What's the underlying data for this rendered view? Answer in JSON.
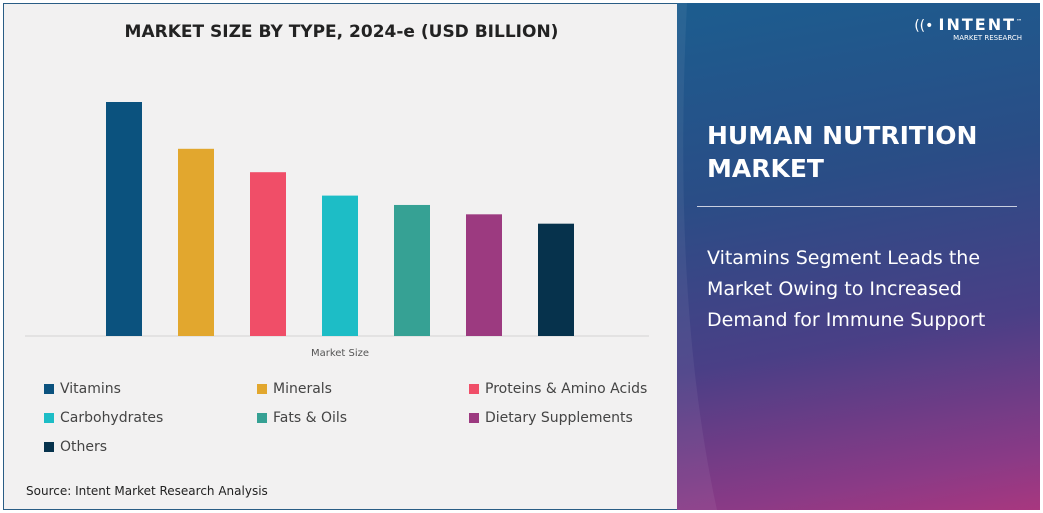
{
  "chart_data": {
    "type": "bar",
    "title": "MARKET SIZE BY TYPE, 2024-e (USD BILLION)",
    "xlabel": "Market Size",
    "ylabel": "",
    "categories": [
      "Vitamins",
      "Minerals",
      "Proteins & Amino Acids",
      "Carbohydrates",
      "Fats & Oils",
      "Dietary Supplements",
      "Others"
    ],
    "values": [
      100,
      80,
      70,
      60,
      56,
      52,
      48
    ],
    "value_note": "relative",
    "colors": [
      "#0b527e",
      "#e2a72e",
      "#f04e68",
      "#1dbdc6",
      "#36a194",
      "#9c3a80",
      "#06324c"
    ],
    "grid": false,
    "legend_placement": "bottom"
  },
  "source": "Source: Intent Market Research Analysis",
  "panel": {
    "logo": {
      "brand": "INTENT",
      "sub": "MARKET RESEARCH",
      "tm": "™"
    },
    "title_line1": "HUMAN NUTRITION",
    "title_line2": "MARKET",
    "subtitle": "Vitamins Segment Leads the Market Owing to Increased Demand for Immune Support"
  }
}
